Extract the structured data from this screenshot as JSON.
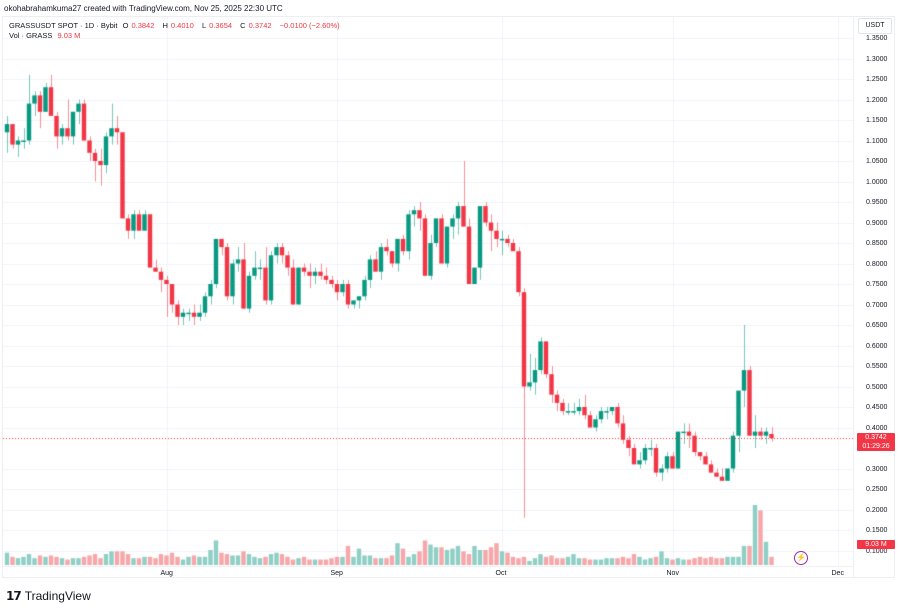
{
  "caption": "okohabrahamkuma27 created with TradingView.com, Nov 25, 2025 22:30 UTC",
  "legend": {
    "symbol": "GRASSUSDT SPOT · 1D · Bybit",
    "o_label": "O",
    "o_value": "0.3842",
    "h_label": "H",
    "h_value": "0.4010",
    "l_label": "L",
    "l_value": "0.3654",
    "c_label": "C",
    "c_value": "0.3742",
    "change": "−0.0100 (−2.60%)",
    "vol_label": "Vol · GRASS",
    "vol_value": "9.03 M"
  },
  "axis": {
    "unit": "USDT",
    "current_price": "0.3742",
    "countdown": "01:29:26",
    "volume_tag": "9.03 M"
  },
  "branding": {
    "logo_text": "TradingView",
    "logo_mark": "17"
  },
  "colors": {
    "up": "#089981",
    "down": "#f23645",
    "vol_up": "#8fcfc5",
    "vol_down": "#f7a7a9",
    "grid": "#f0f3fa"
  },
  "chart_data": {
    "type": "candlestick",
    "title": "GRASSUSDT SPOT · 1D · Bybit",
    "ylabel": "USDT",
    "ylim": [
      0.075,
      1.36
    ],
    "y_ticks": [
      "1.3500",
      "1.3000",
      "1.2500",
      "1.2000",
      "1.1500",
      "1.1000",
      "1.0500",
      "1.0000",
      "0.9500",
      "0.9000",
      "0.8500",
      "0.8000",
      "0.7500",
      "0.7000",
      "0.6500",
      "0.6000",
      "0.5500",
      "0.5000",
      "0.4500",
      "0.4000",
      "0.3000",
      "0.2500",
      "0.2000",
      "0.1500",
      "0.1000"
    ],
    "x_ticks": [
      {
        "label": "Aug",
        "index": 29
      },
      {
        "label": "Sep",
        "index": 60
      },
      {
        "label": "Oct",
        "index": 90
      },
      {
        "label": "Nov",
        "index": 121
      },
      {
        "label": "Dec",
        "index": 151
      }
    ],
    "grid": true,
    "last": {
      "open": 0.3842,
      "high": 0.401,
      "low": 0.3654,
      "close": 0.3742,
      "volume": "9.03M"
    },
    "candles": [
      [
        1.12,
        1.16,
        1.07,
        1.14
      ],
      [
        1.14,
        1.14,
        1.08,
        1.09
      ],
      [
        1.09,
        1.11,
        1.06,
        1.1
      ],
      [
        1.1,
        1.13,
        1.08,
        1.1
      ],
      [
        1.1,
        1.26,
        1.09,
        1.19
      ],
      [
        1.19,
        1.22,
        1.16,
        1.21
      ],
      [
        1.21,
        1.22,
        1.13,
        1.17
      ],
      [
        1.17,
        1.24,
        1.17,
        1.23
      ],
      [
        1.23,
        1.26,
        1.17,
        1.16
      ],
      [
        1.16,
        1.17,
        1.08,
        1.11
      ],
      [
        1.11,
        1.14,
        1.09,
        1.13
      ],
      [
        1.13,
        1.2,
        1.1,
        1.11
      ],
      [
        1.11,
        1.17,
        1.09,
        1.17
      ],
      [
        1.17,
        1.2,
        1.14,
        1.19
      ],
      [
        1.19,
        1.2,
        1.1,
        1.1
      ],
      [
        1.1,
        1.11,
        1.05,
        1.07
      ],
      [
        1.07,
        1.08,
        1.0,
        1.05
      ],
      [
        1.05,
        1.08,
        0.99,
        1.04
      ],
      [
        1.04,
        1.12,
        1.02,
        1.11
      ],
      [
        1.11,
        1.19,
        1.09,
        1.13
      ],
      [
        1.13,
        1.16,
        1.09,
        1.12
      ],
      [
        1.12,
        1.12,
        0.91,
        0.91
      ],
      [
        0.91,
        0.92,
        0.86,
        0.88
      ],
      [
        0.88,
        0.93,
        0.86,
        0.92
      ],
      [
        0.92,
        0.93,
        0.9,
        0.88
      ],
      [
        0.88,
        0.93,
        0.88,
        0.92
      ],
      [
        0.92,
        0.92,
        0.85,
        0.79
      ],
      [
        0.79,
        0.81,
        0.78,
        0.78
      ],
      [
        0.78,
        0.79,
        0.73,
        0.76
      ],
      [
        0.76,
        0.77,
        0.67,
        0.75
      ],
      [
        0.75,
        0.75,
        0.68,
        0.7
      ],
      [
        0.7,
        0.71,
        0.65,
        0.67
      ],
      [
        0.67,
        0.69,
        0.65,
        0.68
      ],
      [
        0.68,
        0.69,
        0.66,
        0.68
      ],
      [
        0.68,
        0.7,
        0.65,
        0.67
      ],
      [
        0.67,
        0.7,
        0.66,
        0.68
      ],
      [
        0.68,
        0.73,
        0.67,
        0.72
      ],
      [
        0.72,
        0.76,
        0.7,
        0.75
      ],
      [
        0.75,
        0.86,
        0.74,
        0.86
      ],
      [
        0.86,
        0.86,
        0.82,
        0.84
      ],
      [
        0.84,
        0.85,
        0.71,
        0.72
      ],
      [
        0.72,
        0.81,
        0.7,
        0.8
      ],
      [
        0.8,
        0.84,
        0.78,
        0.81
      ],
      [
        0.81,
        0.85,
        0.69,
        0.69
      ],
      [
        0.69,
        0.78,
        0.68,
        0.77
      ],
      [
        0.77,
        0.83,
        0.76,
        0.79
      ],
      [
        0.79,
        0.81,
        0.76,
        0.79
      ],
      [
        0.79,
        0.84,
        0.7,
        0.71
      ],
      [
        0.71,
        0.83,
        0.7,
        0.82
      ],
      [
        0.82,
        0.85,
        0.8,
        0.84
      ],
      [
        0.84,
        0.85,
        0.8,
        0.82
      ],
      [
        0.82,
        0.83,
        0.77,
        0.79
      ],
      [
        0.79,
        0.81,
        0.7,
        0.7
      ],
      [
        0.7,
        0.79,
        0.7,
        0.79
      ],
      [
        0.79,
        0.8,
        0.77,
        0.78
      ],
      [
        0.78,
        0.8,
        0.74,
        0.77
      ],
      [
        0.77,
        0.79,
        0.75,
        0.78
      ],
      [
        0.78,
        0.8,
        0.76,
        0.77
      ],
      [
        0.77,
        0.79,
        0.75,
        0.76
      ],
      [
        0.76,
        0.77,
        0.74,
        0.75
      ],
      [
        0.75,
        0.76,
        0.71,
        0.73
      ],
      [
        0.73,
        0.76,
        0.72,
        0.75
      ],
      [
        0.75,
        0.76,
        0.69,
        0.7
      ],
      [
        0.7,
        0.71,
        0.69,
        0.71
      ],
      [
        0.71,
        0.72,
        0.69,
        0.72
      ],
      [
        0.72,
        0.77,
        0.71,
        0.76
      ],
      [
        0.76,
        0.82,
        0.74,
        0.81
      ],
      [
        0.81,
        0.83,
        0.79,
        0.78
      ],
      [
        0.78,
        0.85,
        0.76,
        0.84
      ],
      [
        0.84,
        0.86,
        0.82,
        0.83
      ],
      [
        0.83,
        0.83,
        0.79,
        0.8
      ],
      [
        0.8,
        0.85,
        0.78,
        0.86
      ],
      [
        0.86,
        0.87,
        0.82,
        0.83
      ],
      [
        0.83,
        0.93,
        0.81,
        0.92
      ],
      [
        0.92,
        0.94,
        0.89,
        0.93
      ],
      [
        0.93,
        0.95,
        0.88,
        0.91
      ],
      [
        0.91,
        0.92,
        0.83,
        0.77
      ],
      [
        0.77,
        0.87,
        0.76,
        0.85
      ],
      [
        0.85,
        0.9,
        0.84,
        0.91
      ],
      [
        0.91,
        0.92,
        0.8,
        0.8
      ],
      [
        0.8,
        0.89,
        0.79,
        0.89
      ],
      [
        0.89,
        0.92,
        0.86,
        0.91
      ],
      [
        0.91,
        0.95,
        0.87,
        0.94
      ],
      [
        0.94,
        1.05,
        0.91,
        0.89
      ],
      [
        0.89,
        0.91,
        0.75,
        0.75
      ],
      [
        0.75,
        0.77,
        0.76,
        0.79
      ],
      [
        0.79,
        0.8,
        0.76,
        0.94
      ],
      [
        0.94,
        0.95,
        0.89,
        0.9
      ],
      [
        0.9,
        0.92,
        0.83,
        0.88
      ],
      [
        0.88,
        0.9,
        0.84,
        0.86
      ],
      [
        0.86,
        0.88,
        0.82,
        0.86
      ],
      [
        0.86,
        0.87,
        0.84,
        0.85
      ],
      [
        0.85,
        0.86,
        0.83,
        0.83
      ],
      [
        0.83,
        0.84,
        0.72,
        0.73
      ],
      [
        0.73,
        0.74,
        0.18,
        0.5
      ],
      [
        0.5,
        0.58,
        0.49,
        0.51
      ],
      [
        0.51,
        0.57,
        0.48,
        0.54
      ],
      [
        0.54,
        0.62,
        0.53,
        0.61
      ],
      [
        0.61,
        0.61,
        0.52,
        0.53
      ],
      [
        0.53,
        0.55,
        0.46,
        0.48
      ],
      [
        0.48,
        0.49,
        0.44,
        0.46
      ],
      [
        0.46,
        0.47,
        0.43,
        0.44
      ],
      [
        0.44,
        0.46,
        0.43,
        0.44
      ],
      [
        0.44,
        0.46,
        0.43,
        0.44
      ],
      [
        0.44,
        0.47,
        0.43,
        0.45
      ],
      [
        0.45,
        0.48,
        0.42,
        0.43
      ],
      [
        0.43,
        0.44,
        0.4,
        0.4
      ],
      [
        0.4,
        0.43,
        0.39,
        0.42
      ],
      [
        0.42,
        0.45,
        0.41,
        0.44
      ],
      [
        0.44,
        0.45,
        0.42,
        0.44
      ],
      [
        0.44,
        0.45,
        0.43,
        0.45
      ],
      [
        0.45,
        0.46,
        0.4,
        0.41
      ],
      [
        0.41,
        0.43,
        0.36,
        0.37
      ],
      [
        0.37,
        0.38,
        0.33,
        0.35
      ],
      [
        0.35,
        0.36,
        0.33,
        0.31
      ],
      [
        0.31,
        0.34,
        0.3,
        0.32
      ],
      [
        0.32,
        0.36,
        0.31,
        0.35
      ],
      [
        0.35,
        0.37,
        0.33,
        0.35
      ],
      [
        0.35,
        0.36,
        0.28,
        0.29
      ],
      [
        0.29,
        0.31,
        0.27,
        0.3
      ],
      [
        0.3,
        0.34,
        0.29,
        0.33
      ],
      [
        0.33,
        0.34,
        0.3,
        0.3
      ],
      [
        0.3,
        0.37,
        0.3,
        0.39
      ],
      [
        0.39,
        0.41,
        0.36,
        0.39
      ],
      [
        0.39,
        0.41,
        0.35,
        0.38
      ],
      [
        0.38,
        0.39,
        0.33,
        0.34
      ],
      [
        0.34,
        0.34,
        0.32,
        0.33
      ],
      [
        0.33,
        0.34,
        0.31,
        0.31
      ],
      [
        0.31,
        0.32,
        0.29,
        0.29
      ],
      [
        0.29,
        0.3,
        0.28,
        0.28
      ],
      [
        0.28,
        0.3,
        0.27,
        0.27
      ],
      [
        0.27,
        0.3,
        0.27,
        0.3
      ],
      [
        0.3,
        0.39,
        0.29,
        0.38
      ],
      [
        0.38,
        0.4,
        0.34,
        0.49
      ],
      [
        0.49,
        0.65,
        0.45,
        0.54
      ],
      [
        0.54,
        0.55,
        0.38,
        0.38
      ],
      [
        0.38,
        0.43,
        0.35,
        0.39
      ],
      [
        0.39,
        0.4,
        0.37,
        0.38
      ],
      [
        0.38,
        0.4,
        0.36,
        0.39
      ],
      [
        0.3842,
        0.401,
        0.3654,
        0.3742
      ]
    ],
    "volume": [
      9,
      6,
      5,
      6,
      8,
      5,
      7,
      6,
      7,
      6,
      5,
      4,
      5,
      5,
      6,
      7,
      8,
      5,
      8,
      10,
      10,
      10,
      8,
      5,
      5,
      6,
      6,
      5,
      8,
      7,
      9,
      6,
      4,
      6,
      7,
      6,
      6,
      11,
      18,
      9,
      8,
      7,
      7,
      10,
      8,
      6,
      5,
      6,
      8,
      9,
      8,
      6,
      4,
      5,
      6,
      4,
      4,
      4,
      4,
      5,
      6,
      6,
      14,
      6,
      12,
      7,
      7,
      5,
      5,
      5,
      7,
      16,
      12,
      6,
      8,
      10,
      18,
      15,
      13,
      13,
      11,
      12,
      14,
      10,
      8,
      14,
      11,
      11,
      13,
      16,
      10,
      9,
      6,
      5,
      6,
      3,
      5,
      8,
      6,
      7,
      5,
      5,
      6,
      8,
      5,
      5,
      4,
      4,
      4,
      5,
      5,
      5,
      6,
      5,
      8,
      6,
      4,
      5,
      6,
      10,
      5,
      4,
      5,
      4,
      4,
      5,
      6,
      5,
      6,
      5,
      5,
      6,
      6,
      6,
      14,
      14,
      44,
      40,
      17,
      6,
      14,
      12
    ]
  }
}
